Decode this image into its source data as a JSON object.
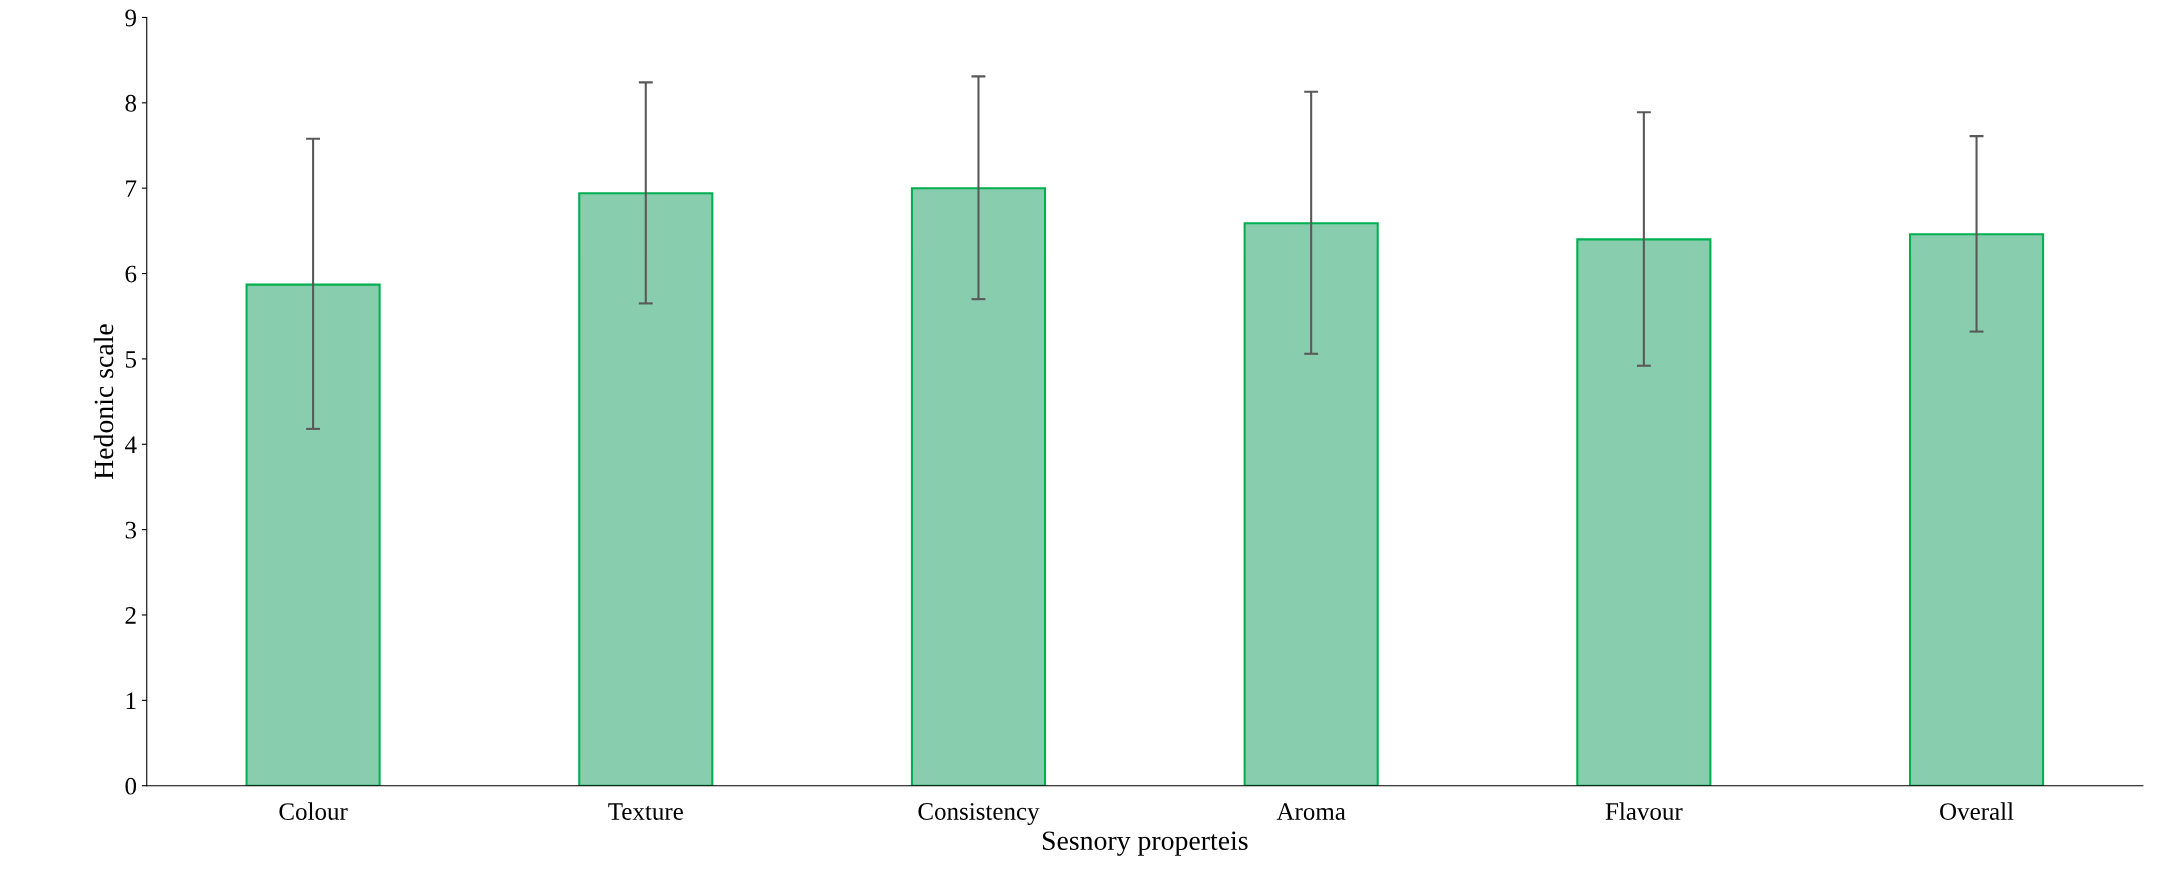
{
  "chart_data": {
    "type": "bar",
    "xlabel": "Sesnory properteis",
    "ylabel": "Hedonic scale",
    "categories": [
      "Colour",
      "Texture",
      "Consistency",
      "Aroma",
      "Flavour",
      "Overall"
    ],
    "values": [
      5.87,
      6.94,
      7.0,
      6.59,
      6.4,
      6.46
    ],
    "errors": [
      [
        4.18,
        7.58
      ],
      [
        5.65,
        8.24
      ],
      [
        5.7,
        8.31
      ],
      [
        5.06,
        8.13
      ],
      [
        4.92,
        7.89
      ],
      [
        5.32,
        7.61
      ]
    ],
    "color": "#88cdae",
    "ylim": [
      0,
      9
    ],
    "yticks": [
      0,
      1,
      2,
      3,
      4,
      5,
      6,
      7,
      8,
      9
    ],
    "grid": false,
    "legend": false
  }
}
